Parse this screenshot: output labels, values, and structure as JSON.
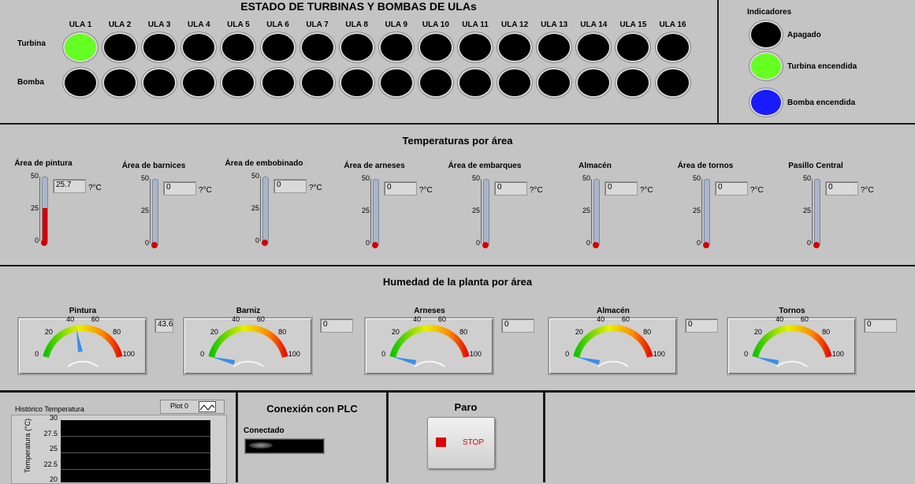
{
  "status": {
    "title": "ESTADO DE TURBINAS Y BOMBAS DE ULAs",
    "row_turbina": "Turbina",
    "row_bomba": "Bomba",
    "ulas": [
      "ULA 1",
      "ULA 2",
      "ULA 3",
      "ULA 4",
      "ULA 5",
      "ULA 6",
      "ULA 7",
      "ULA 8",
      "ULA 9",
      "ULA 10",
      "ULA 11",
      "ULA 12",
      "ULA 13",
      "ULA 14",
      "ULA 15",
      "ULA 16"
    ],
    "turbina_states": [
      "on",
      "off",
      "off",
      "off",
      "off",
      "off",
      "off",
      "off",
      "off",
      "off",
      "off",
      "off",
      "off",
      "off",
      "off",
      "off"
    ],
    "bomba_states": [
      "off",
      "off",
      "off",
      "off",
      "off",
      "off",
      "off",
      "off",
      "off",
      "off",
      "off",
      "off",
      "off",
      "off",
      "off",
      "off"
    ]
  },
  "legend": {
    "title": "Indicadores",
    "items": [
      {
        "label": "Apagado",
        "color": "#000000"
      },
      {
        "label": "Turbina encendida",
        "color": "#66ff22"
      },
      {
        "label": "Bomba encendida",
        "color": "#1a1aff"
      }
    ]
  },
  "temps": {
    "title": "Temperaturas por área",
    "unit": "?°C",
    "ticks": [
      "50",
      "25",
      "0"
    ],
    "max": 50,
    "areas": [
      {
        "label": "Área de pintura",
        "value": "25.7"
      },
      {
        "label": "Área de barnices",
        "value": "0"
      },
      {
        "label": "Área de embobinado",
        "value": "0"
      },
      {
        "label": "Área de arneses",
        "value": "0"
      },
      {
        "label": "Área de embarques",
        "value": "0"
      },
      {
        "label": "Almacén",
        "value": "0"
      },
      {
        "label": "Área de tornos",
        "value": "0"
      },
      {
        "label": "Pasillo Central",
        "value": "0"
      }
    ]
  },
  "humidity": {
    "title": "Humedad de la planta por área",
    "ticks": [
      "0",
      "20",
      "40",
      "60",
      "80",
      "100"
    ],
    "areas": [
      {
        "label": "Pintura",
        "value": "43.6"
      },
      {
        "label": "Barniz",
        "value": "0"
      },
      {
        "label": "Arneses",
        "value": "0"
      },
      {
        "label": "Almacén",
        "value": "0"
      },
      {
        "label": "Tornos",
        "value": "0"
      }
    ]
  },
  "history": {
    "title": "Histórico Temperatura",
    "plot_label": "Plot 0",
    "ylabel": "Temperatura (°C)",
    "ticks": [
      "30",
      "27.5",
      "25",
      "22.5",
      "20"
    ]
  },
  "plc": {
    "title": "Conexión con PLC",
    "status_label": "Conectado"
  },
  "stop": {
    "title": "Paro",
    "button_label": "STOP"
  }
}
